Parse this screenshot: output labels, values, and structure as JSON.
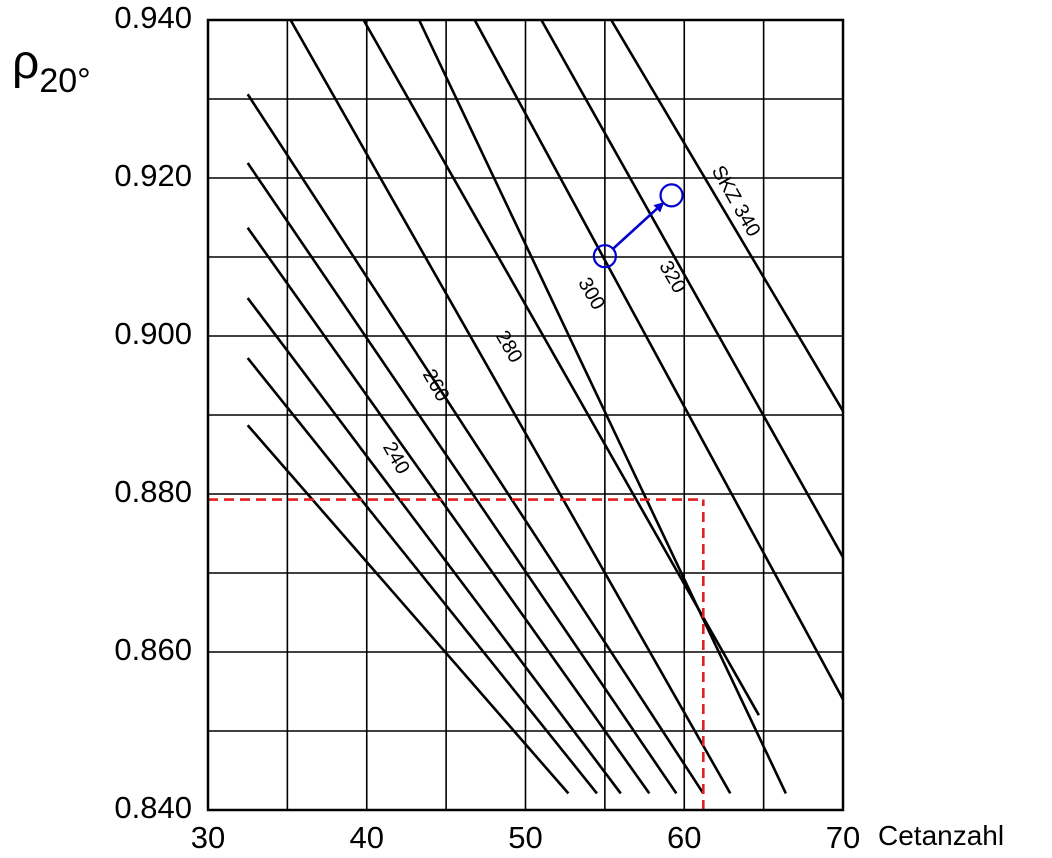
{
  "chart_data": {
    "type": "line",
    "title": "",
    "xlabel": "Cetanzahl",
    "ylabel": {
      "main": "ρ",
      "sub": "20°"
    },
    "xlim": [
      30,
      70
    ],
    "ylim": [
      0.84,
      0.94
    ],
    "x_ticks": [
      {
        "value": 30,
        "label": "30"
      },
      {
        "value": 40,
        "label": "40"
      },
      {
        "value": 50,
        "label": "50"
      },
      {
        "value": 60,
        "label": "60"
      },
      {
        "value": 70,
        "label": "70"
      }
    ],
    "y_ticks": [
      {
        "value": 0.84,
        "label": "0.840"
      },
      {
        "value": 0.86,
        "label": "0.860"
      },
      {
        "value": 0.88,
        "label": "0.880"
      },
      {
        "value": 0.9,
        "label": "0.900"
      },
      {
        "value": 0.92,
        "label": "0.920"
      },
      {
        "value": 0.94,
        "label": "0.940"
      }
    ],
    "grid": {
      "x_step": 5,
      "y_step": 0.01
    },
    "iso_lines": [
      {
        "x": [
          32.5,
          52.7
        ],
        "y": [
          0.8887,
          0.8421
        ]
      },
      {
        "x": [
          32.5,
          54.5
        ],
        "y": [
          0.8972,
          0.8421
        ]
      },
      {
        "x": [
          32.5,
          56.0
        ],
        "y": [
          0.9048,
          0.8421
        ]
      },
      {
        "x": [
          32.5,
          57.8
        ],
        "y": [
          0.9137,
          0.8421
        ]
      },
      {
        "x": [
          32.5,
          59.5
        ],
        "y": [
          0.9219,
          0.8421
        ]
      },
      {
        "x": [
          32.5,
          61.2
        ],
        "y": [
          0.9306,
          0.8421
        ]
      },
      {
        "x": [
          35.2,
          62.9
        ],
        "y": [
          0.94,
          0.8421
        ]
      },
      {
        "x": [
          39.8,
          64.7
        ],
        "y": [
          0.94,
          0.852
        ]
      },
      {
        "x": [
          43.3,
          66.4
        ],
        "y": [
          0.94,
          0.8421
        ]
      },
      {
        "x": [
          46.8,
          70.0
        ],
        "y": [
          0.94,
          0.854
        ]
      },
      {
        "x": [
          51.0,
          70.0
        ],
        "y": [
          0.94,
          0.872
        ]
      },
      {
        "x": [
          55.4,
          70.0
        ],
        "y": [
          0.94,
          0.8905
        ]
      }
    ],
    "iso_labels": [
      {
        "text": "240",
        "x": 41.8,
        "y": 0.8845
      },
      {
        "text": "260",
        "x": 44.3,
        "y": 0.8937
      },
      {
        "text": "280",
        "x": 48.9,
        "y": 0.8986
      },
      {
        "text": "300",
        "x": 54.1,
        "y": 0.9053
      },
      {
        "text": "320",
        "x": 59.2,
        "y": 0.9074
      },
      {
        "text": "SKZ 340",
        "x": 63.2,
        "y": 0.917
      }
    ],
    "reference_lines": {
      "color": "#e02020",
      "horizontal": {
        "y": 0.8793,
        "x_from": 30,
        "x_to": 61.2
      },
      "vertical": {
        "x": 61.2,
        "y_from": 0.84,
        "y_to": 0.8793
      }
    },
    "markers": {
      "color": "#0000d0",
      "from": {
        "x": 55.0,
        "y": 0.9101
      },
      "to": {
        "x": 59.2,
        "y": 0.9178
      }
    },
    "colors": {
      "grid": "#000000",
      "iso_lines": "#000000"
    }
  }
}
